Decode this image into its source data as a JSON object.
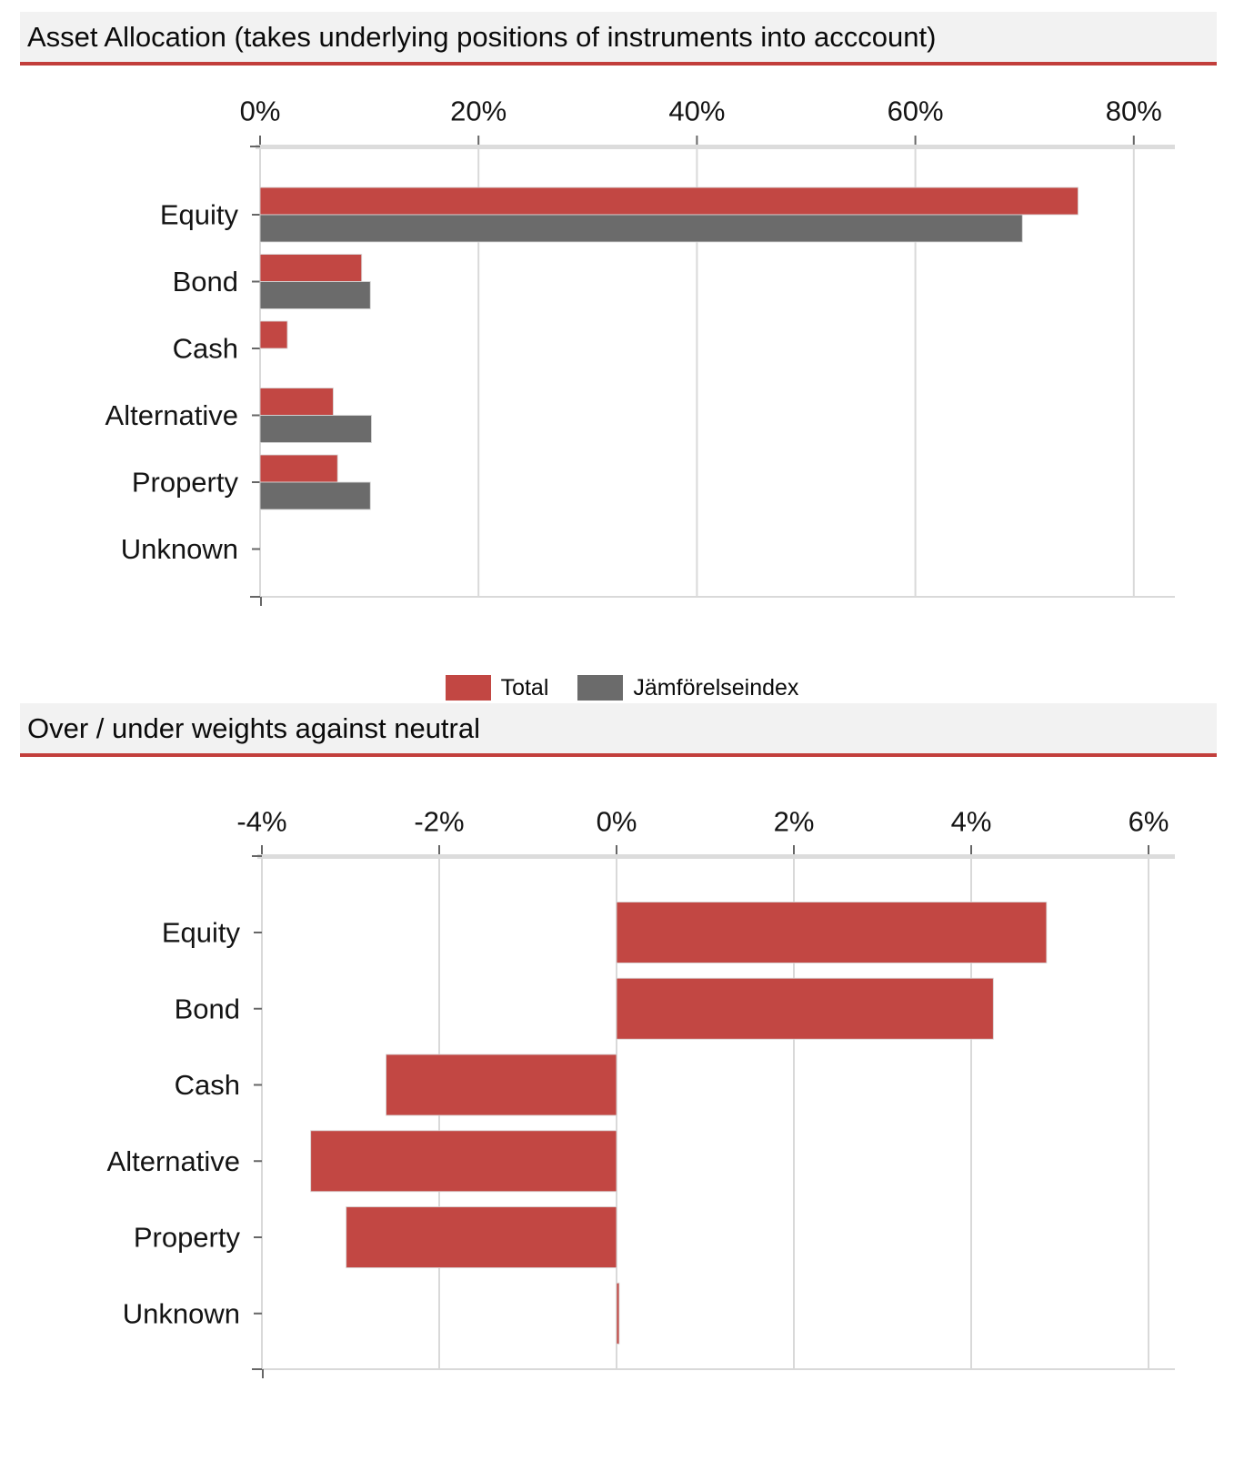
{
  "colors": {
    "total_series": "#c24743",
    "index_series": "#6b6b6b",
    "header_background": "#f2f2f2",
    "header_rule": "#c23e3b",
    "gridline": "#d9d9d9",
    "axis_band": "#dcdcdc",
    "tick": "#666666",
    "text": "#141414"
  },
  "chart_data": [
    {
      "type": "bar",
      "orientation": "horizontal",
      "title": "Asset Allocation (takes underlying positions of instruments into acccount)",
      "categories": [
        "Equity",
        "Bond",
        "Cash",
        "Alternative",
        "Property",
        "Unknown"
      ],
      "series": [
        {
          "name": "Total",
          "color": "#c24743",
          "values": [
            74.9,
            9.3,
            2.5,
            6.7,
            7.1,
            0
          ]
        },
        {
          "name": "Jämförelseindex",
          "color": "#6b6b6b",
          "values": [
            69.8,
            10.1,
            0,
            10.2,
            10.1,
            0
          ]
        }
      ],
      "xticks": [
        "0%",
        "20%",
        "40%",
        "60%",
        "80%"
      ],
      "xtick_values": [
        0,
        20,
        40,
        60,
        80
      ],
      "xlim": [
        0,
        83.7
      ],
      "ylabel": "",
      "xlabel": "",
      "grid": true,
      "legend_position": "bottom",
      "unit": "%"
    },
    {
      "type": "bar",
      "orientation": "horizontal",
      "title": "Over / under weights against neutral",
      "categories": [
        "Equity",
        "Bond",
        "Cash",
        "Alternative",
        "Property",
        "Unknown"
      ],
      "series": [
        {
          "name": "Total",
          "color": "#c24743",
          "values": [
            4.85,
            4.25,
            -2.6,
            -3.45,
            -3.05,
            0.03
          ]
        }
      ],
      "xticks": [
        "-4%",
        "-2%",
        "0%",
        "2%",
        "4%",
        "6%"
      ],
      "xtick_values": [
        -4,
        -2,
        0,
        2,
        4,
        6
      ],
      "xlim": [
        -4.1,
        6.3
      ],
      "ylabel": "",
      "xlabel": "",
      "grid": true,
      "legend_position": "none",
      "unit": "%"
    }
  ]
}
